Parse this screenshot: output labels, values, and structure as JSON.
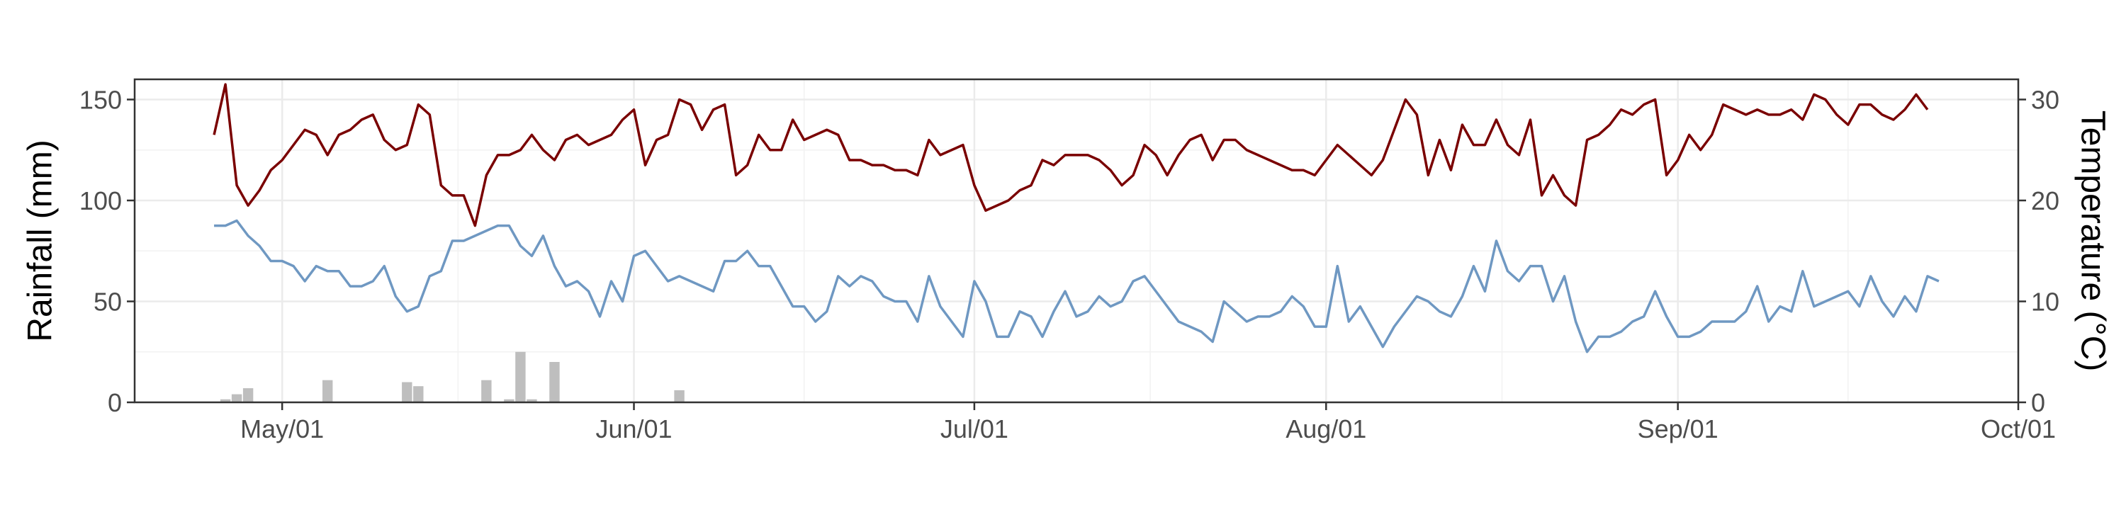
{
  "chart_data": {
    "type": "bar+line",
    "title": "",
    "xlabel": "",
    "ylabel_left": "Rainfall (mm)",
    "ylabel_right": "Temperature (°C)",
    "x_range": [
      "2024-04-18",
      "2024-10-01"
    ],
    "y_left_lim": [
      0,
      160
    ],
    "y_right_lim": [
      0,
      32
    ],
    "x_ticks": [
      {
        "date": "2024-05-01",
        "label": "May/01"
      },
      {
        "date": "2024-06-01",
        "label": "Jun/01"
      },
      {
        "date": "2024-07-01",
        "label": "Jul/01"
      },
      {
        "date": "2024-08-01",
        "label": "Aug/01"
      },
      {
        "date": "2024-09-01",
        "label": "Sep/01"
      },
      {
        "date": "2024-10-01",
        "label": "Oct/01"
      }
    ],
    "y_left_ticks": [
      0,
      50,
      100,
      150
    ],
    "y_right_ticks": [
      0,
      10,
      20,
      30
    ],
    "grid": true,
    "legend": "none",
    "start_date": "2024-04-25",
    "series": [
      {
        "kind": "bar",
        "axis": "left",
        "color": "#bebebe",
        "values": [
          0,
          1.5,
          4,
          7,
          0,
          0,
          0,
          0,
          0,
          0,
          11,
          0,
          0,
          0,
          0,
          0,
          0,
          10,
          8,
          0,
          0,
          0,
          0,
          0,
          11,
          0,
          1.5,
          25,
          1.5,
          0,
          20,
          0,
          0,
          0,
          0,
          0,
          0,
          0,
          0,
          0,
          0,
          6,
          0,
          0,
          0,
          0,
          0,
          0,
          0,
          0,
          0,
          0,
          0,
          0,
          0,
          0,
          0,
          0,
          0,
          0,
          0,
          0,
          0,
          0,
          0,
          0,
          0,
          0,
          0,
          0,
          0,
          0,
          0,
          0,
          0,
          0,
          0,
          0,
          0,
          0,
          0,
          0,
          0,
          0,
          0,
          0,
          0,
          0,
          0,
          0,
          0,
          0,
          0,
          0,
          0,
          0,
          0,
          0,
          0,
          0,
          0,
          0,
          0,
          0,
          0,
          0,
          0,
          0,
          0,
          0,
          0,
          0,
          0,
          0,
          0,
          0,
          0,
          0,
          0,
          0,
          0,
          0,
          0,
          0,
          0,
          0,
          0,
          0,
          0,
          0,
          0,
          0,
          0,
          0,
          0,
          0,
          0,
          0,
          0,
          0,
          0,
          0,
          0,
          0,
          0,
          0,
          0,
          0,
          0,
          0,
          0,
          0,
          0
        ]
      },
      {
        "kind": "line",
        "name": "",
        "axis": "right",
        "color": "#7a0000",
        "values": [
          26.5,
          31.5,
          21.5,
          19.5,
          21,
          23,
          24,
          25.5,
          27,
          26.5,
          24.5,
          26.5,
          27,
          28,
          28.5,
          26,
          25,
          25.5,
          29.5,
          28.5,
          21.5,
          20.5,
          20.5,
          17.5,
          22.5,
          24.5,
          24.5,
          25,
          26.5,
          25,
          24,
          26,
          26.5,
          25.5,
          26,
          26.5,
          28,
          29,
          23.5,
          26,
          26.5,
          30,
          29.5,
          27,
          29,
          29.5,
          22.5,
          23.5,
          26.5,
          25,
          25,
          28,
          26,
          26.5,
          27,
          26.5,
          24,
          24,
          23.5,
          23.5,
          23,
          23,
          22.5,
          26,
          24.5,
          25,
          25.5,
          21.5,
          19,
          19.5,
          20,
          21,
          21.5,
          24,
          23.5,
          24.5,
          24.5,
          24.5,
          24,
          23,
          21.5,
          22.5,
          25.5,
          24.5,
          22.5,
          24.5,
          26,
          26.5,
          24,
          26,
          26,
          25,
          24.5,
          24,
          23.5,
          23,
          23,
          22.5,
          24,
          25.5,
          24.5,
          23.5,
          22.5,
          24,
          27,
          30,
          28.5,
          22.5,
          26,
          23,
          27.5,
          25.5,
          25.5,
          28,
          25.5,
          24.5,
          28,
          20.5,
          22.5,
          20.5,
          19.5,
          26,
          26.5,
          27.5,
          29,
          28.5,
          29.5,
          30,
          22.5,
          24,
          26.5,
          25,
          26.5,
          29.5,
          29,
          28.5,
          29,
          28.5,
          28.5,
          29,
          28,
          30.5,
          30,
          28.5,
          27.5,
          29.5,
          29.5,
          28.5,
          28,
          29,
          30.5,
          29
        ]
      },
      {
        "kind": "line",
        "name": "",
        "axis": "right",
        "color": "#6f98c2",
        "values": [
          17.5,
          17.5,
          18,
          16.5,
          15.5,
          14,
          14,
          13.5,
          12,
          13.5,
          13,
          13,
          11.5,
          11.5,
          12,
          13.5,
          10.5,
          9,
          9.5,
          12.5,
          13,
          16,
          16,
          16.5,
          17,
          17.5,
          17.5,
          15.5,
          14.5,
          16.5,
          13.5,
          11.5,
          12,
          11,
          8.5,
          12,
          10,
          14.5,
          15,
          13.5,
          12,
          12.5,
          12,
          11.5,
          11,
          14,
          14,
          15,
          13.5,
          13.5,
          11.5,
          9.5,
          9.5,
          8,
          9,
          12.5,
          11.5,
          12.5,
          12,
          10.5,
          10,
          10,
          8,
          12.5,
          9.5,
          8,
          6.5,
          12,
          10,
          6.5,
          6.5,
          9,
          8.5,
          6.5,
          9,
          11,
          8.5,
          9,
          10.5,
          9.5,
          10,
          12,
          12.5,
          11,
          9.5,
          8,
          7.5,
          7,
          6,
          10,
          9,
          8,
          8.5,
          8.5,
          9,
          10.5,
          9.5,
          7.5,
          7.5,
          13.5,
          8,
          9.5,
          7.5,
          5.5,
          7.5,
          9,
          10.5,
          10,
          9,
          8.5,
          10.5,
          13.5,
          11,
          16,
          13,
          12,
          13.5,
          13.5,
          10,
          12.5,
          8,
          5,
          6.5,
          6.5,
          7,
          8,
          8.5,
          11,
          8.5,
          6.5,
          6.5,
          7,
          8,
          8,
          8,
          9,
          11.5,
          8,
          9.5,
          9,
          13,
          9.5,
          10,
          10.5,
          11,
          9.5,
          12.5,
          10,
          8.5,
          10.5,
          9,
          12.5,
          12
        ]
      }
    ]
  }
}
